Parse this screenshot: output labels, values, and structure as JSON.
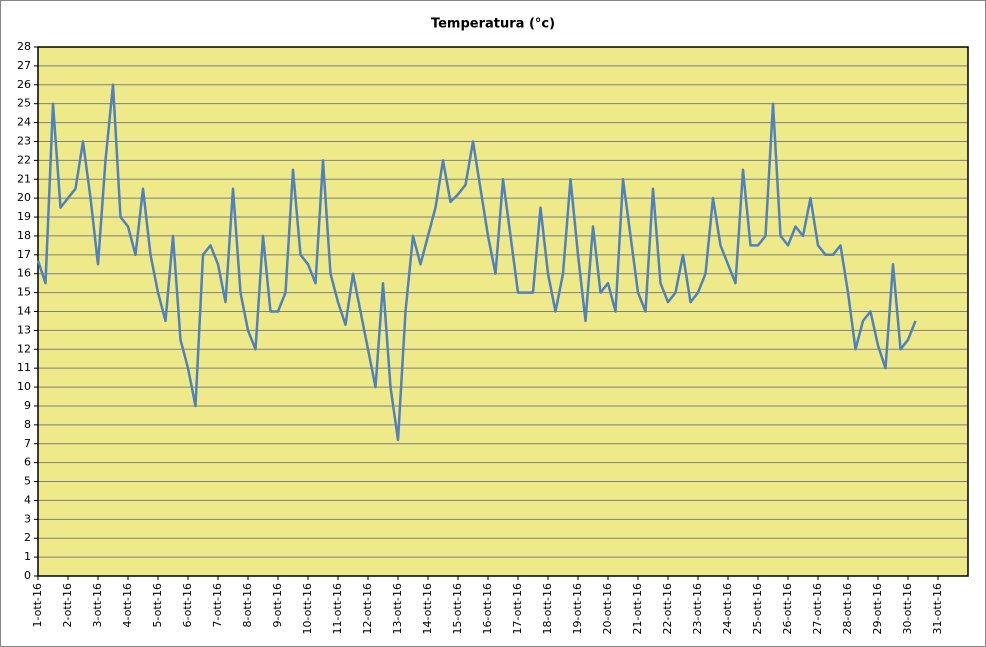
{
  "chart_data": {
    "type": "line",
    "title": "Temperatura (°c)",
    "x": [
      1,
      1.25,
      1.5,
      1.75,
      2,
      2.25,
      2.5,
      2.75,
      3,
      3.25,
      3.5,
      3.75,
      4,
      4.25,
      4.5,
      4.75,
      5,
      5.25,
      5.5,
      5.75,
      6,
      6.25,
      6.5,
      6.75,
      7,
      7.25,
      7.5,
      7.75,
      8,
      8.25,
      8.5,
      8.75,
      9,
      9.25,
      9.5,
      9.75,
      10,
      10.25,
      10.5,
      10.75,
      11,
      11.25,
      11.5,
      11.75,
      12,
      12.25,
      12.5,
      12.75,
      13,
      13.25,
      13.5,
      13.75,
      14,
      14.25,
      14.5,
      14.75,
      15,
      15.25,
      15.5,
      15.75,
      16,
      16.25,
      16.5,
      16.75,
      17,
      17.25,
      17.5,
      17.75,
      18,
      18.25,
      18.5,
      18.75,
      19,
      19.25,
      19.5,
      19.75,
      20,
      20.25,
      20.5,
      20.75,
      21,
      21.25,
      21.5,
      21.75,
      22,
      22.25,
      22.5,
      22.75,
      23,
      23.25,
      23.5,
      23.75,
      24,
      24.25,
      24.5,
      24.75,
      25,
      25.25,
      25.5,
      25.75,
      26,
      26.25,
      26.5,
      26.75,
      27,
      27.25,
      27.5,
      27.75,
      28,
      28.25,
      28.5,
      28.75,
      29,
      29.25,
      29.5,
      29.75,
      30,
      30.25
    ],
    "values": [
      16.7,
      15.5,
      25,
      19.5,
      20,
      20.5,
      23,
      20,
      16.5,
      22,
      26,
      19,
      18.5,
      17,
      20.5,
      17,
      15,
      13.5,
      18,
      12.5,
      11,
      9,
      17,
      17.5,
      16.5,
      14.5,
      20.5,
      15,
      13,
      12,
      18,
      14,
      14,
      15,
      21.5,
      17,
      16.5,
      15.5,
      22,
      16,
      14.5,
      13.3,
      16,
      14,
      12,
      10,
      15.5,
      10,
      7.2,
      14,
      18,
      16.5,
      18,
      19.5,
      22,
      19.8,
      20.2,
      20.7,
      23,
      20.5,
      18,
      16,
      21,
      18,
      15,
      15,
      15,
      19.5,
      16,
      14,
      16,
      21,
      17,
      13.5,
      18.5,
      15,
      15.5,
      14,
      21,
      18,
      15,
      14,
      20.5,
      15.5,
      14.5,
      15,
      17,
      14.5,
      15,
      16,
      20,
      17.5,
      16.5,
      15.5,
      21.5,
      17.5,
      17.5,
      18,
      25,
      18,
      17.5,
      18.5,
      18,
      20,
      17.5,
      17,
      17,
      17.5,
      15,
      12,
      13.5,
      14,
      12.2,
      11,
      16.5,
      12,
      12.5,
      13.5
    ],
    "color": "#4f81bd",
    "xlim": [
      1,
      32
    ],
    "xticks": [
      {
        "value": 1,
        "label": "1-ott-16"
      },
      {
        "value": 2,
        "label": "2-ott-16"
      },
      {
        "value": 3,
        "label": "3-ott-16"
      },
      {
        "value": 4,
        "label": "4-ott-16"
      },
      {
        "value": 5,
        "label": "5-ott-16"
      },
      {
        "value": 6,
        "label": "6-ott-16"
      },
      {
        "value": 7,
        "label": "7-ott-16"
      },
      {
        "value": 8,
        "label": "8-ott-16"
      },
      {
        "value": 9,
        "label": "9-ott-16"
      },
      {
        "value": 10,
        "label": "10-ott-16"
      },
      {
        "value": 11,
        "label": "11-ott-16"
      },
      {
        "value": 12,
        "label": "12-ott-16"
      },
      {
        "value": 13,
        "label": "13-ott-16"
      },
      {
        "value": 14,
        "label": "14-ott-16"
      },
      {
        "value": 15,
        "label": "15-ott-16"
      },
      {
        "value": 16,
        "label": "16-ott-16"
      },
      {
        "value": 17,
        "label": "17-ott-16"
      },
      {
        "value": 18,
        "label": "18-ott-16"
      },
      {
        "value": 19,
        "label": "19-ott-16"
      },
      {
        "value": 20,
        "label": "20-ott-16"
      },
      {
        "value": 21,
        "label": "21-ott-16"
      },
      {
        "value": 22,
        "label": "22-ott-16"
      },
      {
        "value": 23,
        "label": "23-ott-16"
      },
      {
        "value": 24,
        "label": "24-ott-16"
      },
      {
        "value": 25,
        "label": "25-ott-16"
      },
      {
        "value": 26,
        "label": "26-ott-16"
      },
      {
        "value": 27,
        "label": "27-ott-16"
      },
      {
        "value": 28,
        "label": "28-ott-16"
      },
      {
        "value": 29,
        "label": "29-ott-16"
      },
      {
        "value": 30,
        "label": "30-ott-16"
      },
      {
        "value": 31,
        "label": "31-ott-16"
      }
    ],
    "ylim": [
      0,
      28
    ],
    "yticks": [
      0,
      1,
      2,
      3,
      4,
      5,
      6,
      7,
      8,
      9,
      10,
      11,
      12,
      13,
      14,
      15,
      16,
      17,
      18,
      19,
      20,
      21,
      22,
      23,
      24,
      25,
      26,
      27,
      28
    ],
    "grid": true
  }
}
